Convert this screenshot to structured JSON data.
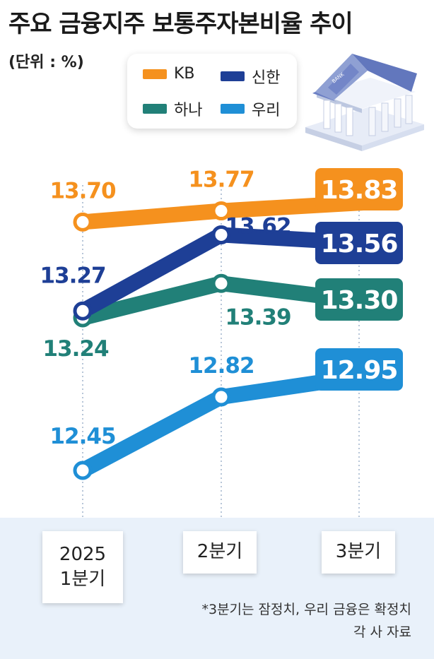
{
  "title": "주요 금융지주 보통주자본비율 추이",
  "unit": "(단위 : %)",
  "colors": {
    "KB": "#f5911e",
    "신한": "#1e3f96",
    "하나": "#218078",
    "우리": "#1f8fd6"
  },
  "chart_data": {
    "type": "line",
    "categories": [
      "2025\n1분기",
      "2분기",
      "3분기"
    ],
    "series": [
      {
        "name": "KB",
        "values": [
          13.7,
          13.77,
          13.83
        ],
        "labels": [
          "13.70",
          "13.77",
          "13.83"
        ]
      },
      {
        "name": "신한",
        "values": [
          13.27,
          13.62,
          13.56
        ],
        "labels": [
          "13.27",
          "13.62",
          "13.56"
        ]
      },
      {
        "name": "하나",
        "values": [
          13.24,
          13.39,
          13.3
        ],
        "labels": [
          "13.24",
          "13.39",
          "13.30"
        ]
      },
      {
        "name": "우리",
        "values": [
          12.45,
          12.82,
          12.95
        ],
        "labels": [
          "12.45",
          "12.82",
          "12.95"
        ]
      }
    ],
    "legend": "top-right"
  },
  "notes": {
    "line1": "*3분기는 잠정치, 우리 금융은 확정치",
    "line2": "각 사 자료"
  }
}
